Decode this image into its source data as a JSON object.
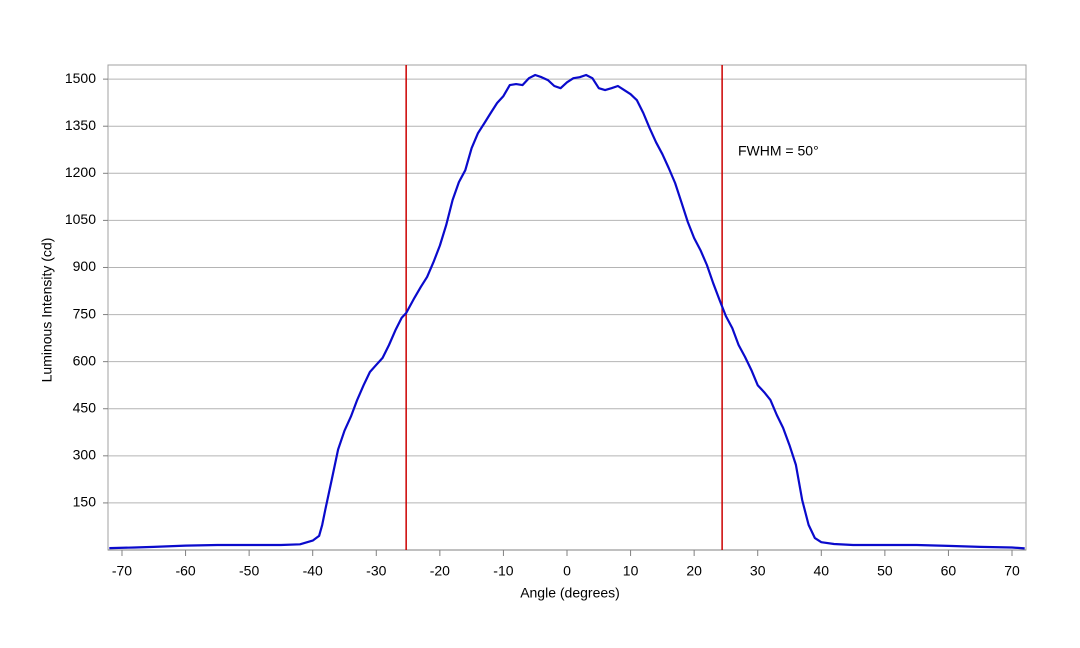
{
  "chart_data": {
    "type": "line",
    "xlabel": "Angle (degrees)",
    "ylabel": "Luminous Intensity (cd)",
    "annotation": "FWHM = 50°",
    "x": [
      -72,
      -68,
      -65,
      -60,
      -55,
      -50,
      -45,
      -42,
      -40,
      -39,
      -38.5,
      -38,
      -37,
      -36,
      -35,
      -34,
      -33,
      -32,
      -31,
      -30,
      -29,
      -28,
      -27,
      -26,
      -25.3,
      -24,
      -23,
      -22,
      -21,
      -20,
      -19,
      -18,
      -17,
      -16,
      -15,
      -14,
      -13,
      -12,
      -11,
      -10,
      -9,
      -8,
      -7,
      -6,
      -5,
      -4,
      -3,
      -2,
      -1,
      0,
      1,
      2,
      3,
      4,
      5,
      6,
      7,
      8,
      9,
      10,
      11,
      12,
      13,
      14,
      15,
      16,
      17,
      18,
      19,
      20,
      21,
      22,
      23,
      24,
      25,
      26,
      27,
      28,
      29,
      30,
      31,
      32,
      33,
      34,
      35,
      36,
      37,
      38,
      39,
      40,
      42,
      45,
      50,
      55,
      60,
      65,
      70,
      72
    ],
    "series": [
      {
        "name": "Luminous Intensity",
        "color": "#0a0acc",
        "values": [
          6,
          8,
          10,
          14,
          16,
          16,
          16,
          18,
          30,
          45,
          80,
          130,
          225,
          320,
          380,
          425,
          478,
          525,
          567,
          590,
          612,
          653,
          700,
          740,
          755,
          803,
          838,
          870,
          917,
          970,
          1035,
          1115,
          1172,
          1210,
          1280,
          1328,
          1360,
          1392,
          1424,
          1446,
          1481,
          1484,
          1481,
          1503,
          1513,
          1506,
          1497,
          1478,
          1471,
          1490,
          1503,
          1506,
          1513,
          1503,
          1471,
          1465,
          1471,
          1478,
          1465,
          1452,
          1433,
          1392,
          1344,
          1299,
          1261,
          1217,
          1169,
          1108,
          1045,
          994,
          955,
          908,
          850,
          796,
          745,
          707,
          653,
          615,
          573,
          525,
          503,
          478,
          430,
          389,
          334,
          271,
          159,
          80,
          38,
          25,
          19,
          16,
          16,
          16,
          13,
          10,
          8,
          5
        ]
      }
    ],
    "vlines": [
      -25.3,
      24.4
    ],
    "vline_color": "#cc0000",
    "xlim": [
      -72.2,
      72.2
    ],
    "xticks": [
      -70,
      -60,
      -50,
      -40,
      -30,
      -20,
      -10,
      0,
      10,
      20,
      30,
      40,
      50,
      60,
      70
    ],
    "ylim": [
      0,
      1545
    ],
    "yticks": [
      150,
      300,
      450,
      600,
      750,
      900,
      1050,
      1200,
      1350,
      1500
    ],
    "grid": true
  }
}
